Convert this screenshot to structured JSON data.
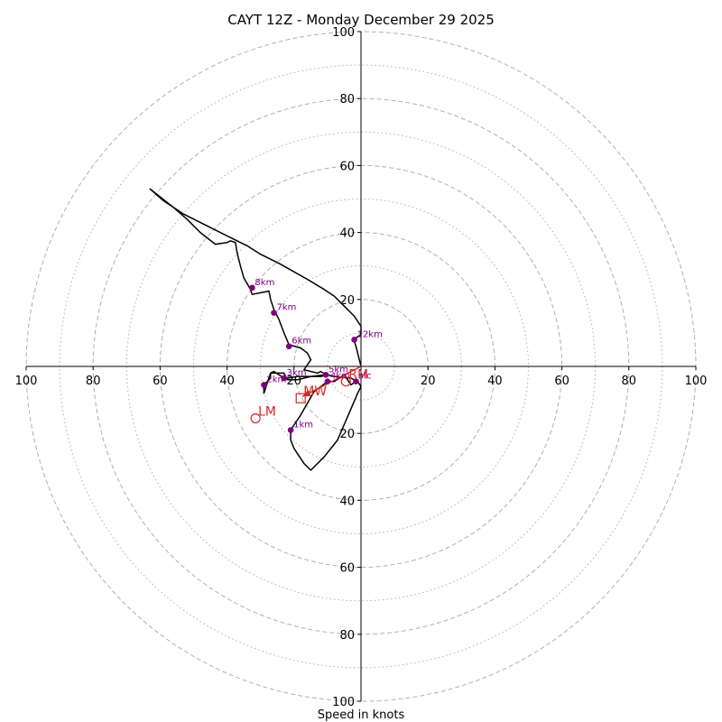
{
  "chart_data": {
    "type": "hodograph",
    "title": "CAYT 12Z - Monday December 29 2025",
    "xlabel": "Speed in knots",
    "range": [
      -100,
      100
    ],
    "ring_major": [
      20,
      40,
      60,
      80,
      100
    ],
    "ring_minor": [
      10,
      30,
      50,
      70,
      90
    ],
    "x_tick_labels": [
      "100",
      "80",
      "60",
      "40",
      "20",
      "20",
      "40",
      "60",
      "80",
      "100"
    ],
    "x_tick_values": [
      -100,
      -80,
      -60,
      -40,
      -20,
      20,
      40,
      60,
      80,
      100
    ],
    "y_tick_labels": [
      "100",
      "80",
      "60",
      "40",
      "20",
      "20",
      "40",
      "60",
      "80",
      "100"
    ],
    "y_tick_values": [
      100,
      80,
      60,
      40,
      20,
      -20,
      -40,
      -60,
      -80,
      -100
    ],
    "trace": [
      [
        -1.5,
        -4.5
      ],
      [
        -3,
        -5.5
      ],
      [
        -5,
        -2.5
      ],
      [
        -8,
        -4.5
      ],
      [
        -10,
        -4.5
      ],
      [
        -14,
        -7.5
      ],
      [
        -18,
        -14.5
      ],
      [
        -21,
        -19
      ],
      [
        -21,
        -22
      ],
      [
        -20,
        -24.5
      ],
      [
        -17,
        -29
      ],
      [
        -15,
        -31
      ],
      [
        -11,
        -27
      ],
      [
        -7,
        -22
      ],
      [
        -4,
        -15
      ],
      [
        -1,
        -8
      ],
      [
        0,
        -6
      ],
      [
        -1,
        -4.5
      ],
      [
        -3,
        -3.5
      ],
      [
        -8,
        -3
      ],
      [
        -10,
        -2.5
      ],
      [
        -12,
        -3
      ],
      [
        -15,
        -3
      ],
      [
        -19,
        -4
      ],
      [
        -22,
        -4
      ],
      [
        -23,
        -2
      ],
      [
        -27,
        -2
      ],
      [
        -27,
        -3.5
      ],
      [
        -29,
        -5.5
      ],
      [
        -29,
        -8
      ],
      [
        -27,
        -2
      ],
      [
        -26,
        -1.5
      ],
      [
        -23,
        -3.5
      ],
      [
        -22,
        -3.5
      ],
      [
        -19,
        -3
      ],
      [
        -15,
        -3
      ],
      [
        -10.5,
        -2.5
      ],
      [
        -12,
        -1.5
      ],
      [
        -13,
        -2
      ],
      [
        -17,
        -1
      ],
      [
        -15,
        2
      ],
      [
        -16,
        4
      ],
      [
        -18,
        5.5
      ],
      [
        -21.5,
        6.5
      ],
      [
        -23,
        10
      ],
      [
        -24.5,
        14
      ],
      [
        -26,
        17
      ],
      [
        -27,
        20
      ],
      [
        -27.5,
        22.5
      ],
      [
        -30,
        22
      ],
      [
        -32.5,
        21.5
      ],
      [
        -33,
        23
      ],
      [
        -35,
        26.5
      ],
      [
        -36,
        30
      ],
      [
        -37,
        34
      ],
      [
        -37.5,
        37
      ],
      [
        -39,
        37.5
      ],
      [
        -40,
        37
      ],
      [
        -43.5,
        36.5
      ],
      [
        -48,
        40
      ],
      [
        -52,
        44
      ],
      [
        -56,
        47.5
      ],
      [
        -63,
        53
      ],
      [
        -59,
        49.5
      ],
      [
        -53,
        45.5
      ],
      [
        -46,
        42
      ],
      [
        -39,
        38.5
      ],
      [
        -34,
        36
      ],
      [
        -30,
        33.5
      ],
      [
        -24,
        30.5
      ],
      [
        -16,
        26
      ],
      [
        -11,
        23
      ],
      [
        -8,
        21
      ],
      [
        -5,
        18
      ],
      [
        -2,
        15
      ],
      [
        0,
        12
      ],
      [
        0,
        9.5
      ],
      [
        -1.5,
        8.5
      ],
      [
        -2,
        7.5
      ],
      [
        -1.5,
        6
      ],
      [
        -1,
        4
      ],
      [
        0,
        0
      ]
    ],
    "height_markers": [
      {
        "label": "sfc",
        "u": -1.5,
        "v": -4.5
      },
      {
        "label": "1km",
        "u": -21,
        "v": -19
      },
      {
        "label": "2km",
        "u": -29,
        "v": -5.5
      },
      {
        "label": "3km",
        "u": -23,
        "v": -3.5
      },
      {
        "label": "4km",
        "u": -10,
        "v": -4.5
      },
      {
        "label": "5km",
        "u": -10.5,
        "v": -2.5
      },
      {
        "label": "6km",
        "u": -21.5,
        "v": 6
      },
      {
        "label": "7km",
        "u": -26,
        "v": 16
      },
      {
        "label": "8km",
        "u": -32.5,
        "v": 23.5
      },
      {
        "label": "12km",
        "u": -2,
        "v": 8
      }
    ],
    "motion_markers": [
      {
        "label": "RM",
        "u": -4.5,
        "v": -4.5,
        "shape": "circle"
      },
      {
        "label": "LM",
        "u": -31.5,
        "v": -15.5,
        "shape": "circle"
      },
      {
        "label": "MW",
        "u": -18,
        "v": -9.5,
        "shape": "square"
      }
    ],
    "storm_motion_vector": {
      "from": [
        0,
        0
      ],
      "to": [
        -17.5,
        -9
      ]
    },
    "colors": {
      "trace": "#000000",
      "height_marker": "#800080",
      "motion": "#d62728",
      "ring": "#b0b0b0",
      "axis": "#000000"
    }
  }
}
